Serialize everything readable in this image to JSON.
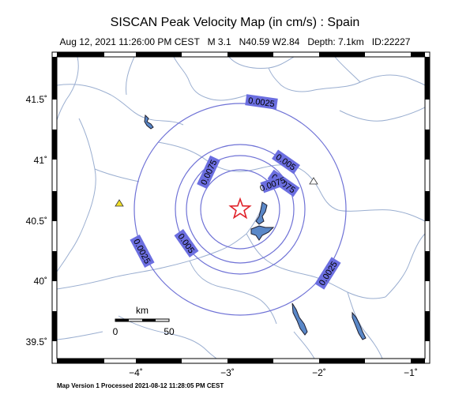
{
  "title": "SISCAN Peak Velocity Map (in cm/s) : Spain",
  "subtitle": {
    "datetime": "Aug 12, 2021 11:26:00 PM CEST",
    "magnitude": "M 3.1",
    "location": "N40.59 W2.84",
    "depth": "Depth: 7.1km",
    "id": "ID:22227"
  },
  "axes": {
    "lat_ticks": [
      "41.5˚",
      "41˚",
      "40.5˚",
      "40˚",
      "39.5˚"
    ],
    "lon_ticks": [
      "−4˚",
      "−3˚",
      "−2˚",
      "−1˚"
    ]
  },
  "scale_bar": {
    "unit": "km",
    "labels": [
      "0",
      "50"
    ]
  },
  "contours": {
    "labels": [
      "0.0025",
      "0.005",
      "0.0075",
      "0.0075",
      "0.0075",
      "0.005",
      "0.0025",
      "0.0025"
    ]
  },
  "epicenter": {
    "lat": 40.59,
    "lon": -2.84
  },
  "footer": "Map Version 1 Processed 2021-08-12 11:28:05 PM CEST",
  "colors": {
    "contour": "#6f72d6",
    "label_bg": "#6b6ee0",
    "river": "#9aaed0",
    "lake": "#5a88c8",
    "epicenter": "#e0222a",
    "station_yellow": "#f2e02a"
  }
}
